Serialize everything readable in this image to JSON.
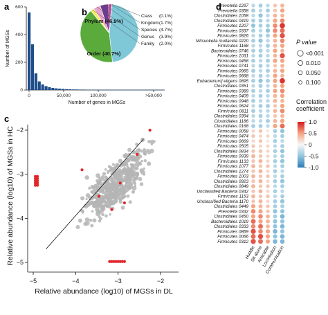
{
  "panel_labels": {
    "a": "a",
    "b": "b",
    "c": "c",
    "d": "d"
  },
  "chart_data": [
    {
      "id": "a",
      "type": "bar",
      "xlabel": "Number of genes in MGSs",
      "ylabel": "Number of MGSs",
      "ylim": [
        0,
        600
      ],
      "yticks": [
        "0",
        "200",
        "400",
        "600"
      ],
      "xticks": [
        "0",
        "50,000",
        "100,000",
        ">50,000"
      ],
      "color": "#1f4e89",
      "values": [
        560,
        330,
        120,
        62,
        40,
        28,
        20,
        15,
        12,
        10,
        8,
        6,
        5,
        4,
        4,
        3,
        3,
        2,
        2,
        2,
        2,
        1,
        1,
        1,
        1,
        1,
        1,
        1,
        1,
        1,
        1,
        1,
        1,
        1,
        1,
        1,
        1,
        1,
        1,
        1
      ]
    },
    {
      "id": "b",
      "type": "pie",
      "slices": [
        {
          "label": "Phylum",
          "pct": "(46.9%)",
          "value": 46.9,
          "color": "#7ec8d8"
        },
        {
          "label": "Order",
          "pct": "(40.7%)",
          "value": 40.7,
          "color": "#5aaa3c"
        },
        {
          "label": "Family",
          "pct": "(2.0%)",
          "value": 2.0,
          "color": "#f5ec5a"
        },
        {
          "label": "Genus",
          "pct": "(3.9%)",
          "value": 3.9,
          "color": "#e8a3cf"
        },
        {
          "label": "Species",
          "pct": "(4.7%)",
          "value": 4.7,
          "color": "#6b3d8c"
        },
        {
          "label": "Kingdom",
          "pct": "(1.7%)",
          "value": 1.7,
          "color": "#c23b93"
        },
        {
          "label": "Class",
          "pct": "(0.1%)",
          "value": 0.1,
          "color": "#3a2a6b"
        }
      ]
    },
    {
      "id": "c",
      "type": "scatter",
      "xlabel": "Relative abundance (log10) of MGSs in DL",
      "ylabel": "Relative abundance (log10) of MGSs in HC",
      "xlim": [
        -5,
        -2
      ],
      "ylim": [
        -5,
        -2
      ],
      "xticks": [
        -5,
        -4,
        -3,
        -2
      ],
      "yticks": [
        -5,
        -4,
        -3,
        -2
      ],
      "xtick_labels": [
        "−5",
        "−4",
        "−3",
        "−2"
      ],
      "ytick_labels": [
        "−5",
        "−4",
        "−3",
        "−2"
      ],
      "grey_color": "#b5b5b5",
      "red_color": "#e0262a",
      "red_points": [
        [
          -2.25,
          -2.0
        ],
        [
          -2.55,
          -2.55
        ],
        [
          -2.95,
          -3.2
        ],
        [
          -3.85,
          -2.9
        ],
        [
          -2.85,
          -3.65
        ],
        [
          -3.15,
          -3.8
        ],
        [
          -3.45,
          -3.5
        ],
        [
          -4.95,
          -3.05
        ],
        [
          -4.95,
          -3.1
        ],
        [
          -4.95,
          -3.15
        ],
        [
          -4.95,
          -3.2
        ],
        [
          -4.95,
          -3.25
        ],
        [
          -4.9,
          -3.05
        ],
        [
          -4.9,
          -3.1
        ],
        [
          -4.9,
          -3.15
        ],
        [
          -4.9,
          -3.2
        ],
        [
          -4.9,
          -3.25
        ],
        [
          -3.2,
          -4.98
        ],
        [
          -3.15,
          -4.98
        ],
        [
          -3.1,
          -4.98
        ],
        [
          -3.05,
          -4.98
        ],
        [
          -3.0,
          -4.98
        ],
        [
          -2.95,
          -4.98
        ],
        [
          -2.9,
          -4.98
        ],
        [
          -2.85,
          -4.98
        ]
      ]
    },
    {
      "id": "d",
      "type": "heatmap",
      "rows": [
        "Prevotella 1297",
        "Prevotella 0358",
        "Clostridiales 1058",
        "Clostridiales 0419",
        "Firmicutes 1207",
        "Firmicutes 0337",
        "Firmicutes 0826",
        "Mitsuokella multacida 0220",
        "Firmicutes 1168",
        "Bacteroidales 0746",
        "Firmicutes 1031",
        "Firmicutes 0458",
        "Firmicutes 0741",
        "Firmicutes 0965",
        "Firmicutes 0668",
        "Eubacterium] eligens 0895",
        "Clostridiales 0351",
        "Firmicutes 0389",
        "Firmicutes 0409",
        "Firmicutes 0948",
        "Firmicutes 0624",
        "Firmicutes 0811",
        "Clostridiales 0394",
        "Clostridiales 1186",
        "Clostridiales 0168",
        "Firmicutes 0058",
        "Firmicutes 0474",
        "Firmicutes 0669",
        "Firmicutes 0505",
        "Clostridiales 0834",
        "Firmicutes 0939",
        "Firmicutes 1133",
        "Firmicutes 1077",
        "Clostridiales 1274",
        "Firmicutes 1003",
        "Clostridiales 0923",
        "Clostridiales 0849",
        "Unclassified Bacteria 0342",
        "Firmicutes 1153",
        "Unclassified Bacteria 1170",
        "Clostridiales 0449",
        "Prevotella 0332",
        "Clostridiales 0450",
        "Bacteroidales 1019",
        "Clostridiales 0333",
        "Firmicutes 0869",
        "Firmicutes 0066",
        "Firmicutes 0312"
      ],
      "columns": [
        "Huddle",
        "Sit alone",
        "Amicable",
        "Locomotion",
        "Communication"
      ],
      "legend_title_p": "P value",
      "p_values": [
        "<0.001",
        "0.010",
        "0.050",
        "0.100"
      ],
      "legend_title_corr": "Correlation coefficient",
      "corr_ticks": [
        "1.0",
        "0.5",
        "0",
        "-0.5",
        "-1.0"
      ],
      "values": [
        [
          -0.3,
          -0.4,
          -0.3,
          0.3,
          0.4
        ],
        [
          -0.4,
          -0.3,
          -0.4,
          0.3,
          0.5
        ],
        [
          -0.3,
          -0.5,
          -0.3,
          0.4,
          0.4
        ],
        [
          -0.4,
          -0.4,
          -0.3,
          0.5,
          0.6
        ],
        [
          -0.5,
          -0.4,
          -0.4,
          0.6,
          0.9
        ],
        [
          -0.4,
          -0.3,
          -0.5,
          0.6,
          0.7
        ],
        [
          -0.3,
          -0.4,
          -0.4,
          0.5,
          0.8
        ],
        [
          -0.4,
          -0.5,
          -0.3,
          0.4,
          0.6
        ],
        [
          -0.3,
          -0.3,
          -0.4,
          0.4,
          0.5
        ],
        [
          -0.4,
          -0.4,
          -0.3,
          0.5,
          0.4
        ],
        [
          -0.3,
          -0.4,
          -0.3,
          0.4,
          0.8
        ],
        [
          -0.4,
          -0.3,
          -0.4,
          0.5,
          0.5
        ],
        [
          -0.3,
          -0.4,
          -0.3,
          0.3,
          0.4
        ],
        [
          -0.4,
          -0.3,
          -0.4,
          0.4,
          0.5
        ],
        [
          -0.3,
          -0.4,
          -0.3,
          0.5,
          0.4
        ],
        [
          -0.4,
          -0.5,
          -0.4,
          0.5,
          0.9
        ],
        [
          -0.3,
          -0.4,
          -0.3,
          0.4,
          0.5
        ],
        [
          -0.4,
          -0.3,
          -0.4,
          0.5,
          0.6
        ],
        [
          -0.3,
          -0.4,
          -0.3,
          0.4,
          0.5
        ],
        [
          -0.4,
          -0.3,
          -0.3,
          0.4,
          0.4
        ],
        [
          -0.3,
          -0.4,
          -0.4,
          0.3,
          0.5
        ],
        [
          -0.4,
          -0.3,
          -0.3,
          0.4,
          0.6
        ],
        [
          -0.3,
          -0.4,
          -0.3,
          0.3,
          0.4
        ],
        [
          -0.3,
          -0.3,
          -0.4,
          0.4,
          0.5
        ],
        [
          -0.4,
          -0.4,
          -0.3,
          0.5,
          0.7
        ],
        [
          0.2,
          0.3,
          0.1,
          -0.4,
          -0.5
        ],
        [
          0.3,
          0.2,
          0.2,
          -0.3,
          -0.4
        ],
        [
          0.2,
          0.3,
          0.1,
          -0.4,
          -0.3
        ],
        [
          0.3,
          0.2,
          0.2,
          -0.3,
          -0.4
        ],
        [
          0.3,
          0.3,
          0.2,
          -0.4,
          -0.5
        ],
        [
          0.4,
          0.3,
          0.2,
          -0.3,
          -0.4
        ],
        [
          0.3,
          0.4,
          0.2,
          -0.4,
          -0.5
        ],
        [
          0.4,
          0.3,
          0.3,
          -0.3,
          -0.4
        ],
        [
          0.3,
          0.4,
          0.2,
          -0.4,
          -0.3
        ],
        [
          0.4,
          0.3,
          0.3,
          -0.3,
          -0.4
        ],
        [
          0.3,
          0.4,
          0.2,
          -0.4,
          -0.5
        ],
        [
          0.4,
          0.3,
          0.3,
          -0.3,
          -0.4
        ],
        [
          0.3,
          0.4,
          0.2,
          -0.4,
          -0.3
        ],
        [
          0.4,
          0.3,
          0.3,
          -0.3,
          -0.4
        ],
        [
          0.3,
          0.4,
          0.2,
          -0.4,
          -0.5
        ],
        [
          0.5,
          0.4,
          0.3,
          -0.4,
          -0.4
        ],
        [
          0.6,
          0.5,
          0.3,
          -0.5,
          -0.5
        ],
        [
          0.5,
          0.6,
          0.4,
          -0.4,
          -0.6
        ],
        [
          0.7,
          0.5,
          0.4,
          -0.5,
          -0.5
        ],
        [
          0.6,
          0.7,
          0.4,
          -0.5,
          -0.6
        ],
        [
          0.8,
          0.6,
          0.5,
          -0.6,
          -0.5
        ],
        [
          0.7,
          0.8,
          0.5,
          -0.5,
          -0.6
        ],
        [
          0.8,
          0.7,
          0.5,
          -0.6,
          -0.6
        ]
      ]
    }
  ]
}
